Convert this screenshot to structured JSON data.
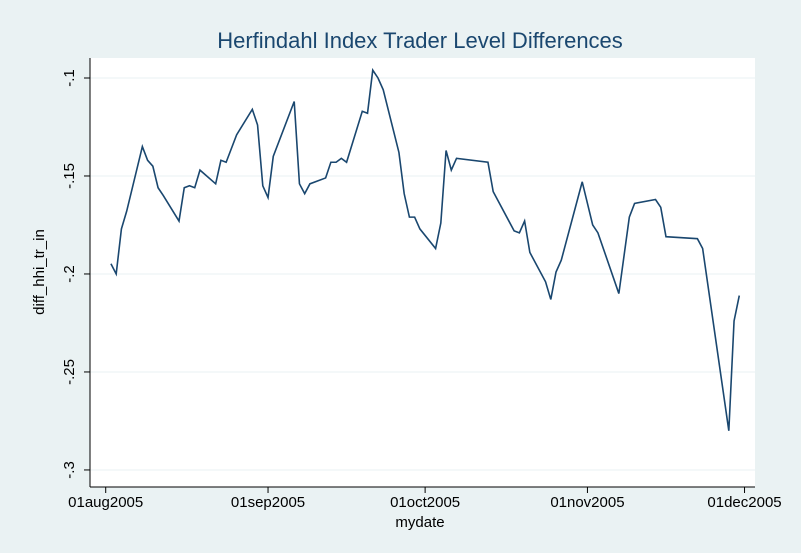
{
  "chart_data": {
    "type": "line",
    "title": "Herfindahl Index Trader Level Differences",
    "x_label": "mydate",
    "y_label": "diff_hhi_tr_in",
    "x": [
      "2005-08-02",
      "2005-08-03",
      "2005-08-04",
      "2005-08-05",
      "2005-08-08",
      "2005-08-09",
      "2005-08-10",
      "2005-08-11",
      "2005-08-12",
      "2005-08-15",
      "2005-08-16",
      "2005-08-17",
      "2005-08-18",
      "2005-08-19",
      "2005-08-22",
      "2005-08-23",
      "2005-08-24",
      "2005-08-26",
      "2005-08-29",
      "2005-08-30",
      "2005-08-31",
      "2005-09-01",
      "2005-09-02",
      "2005-09-06",
      "2005-09-07",
      "2005-09-08",
      "2005-09-09",
      "2005-09-12",
      "2005-09-13",
      "2005-09-14",
      "2005-09-15",
      "2005-09-16",
      "2005-09-19",
      "2005-09-20",
      "2005-09-21",
      "2005-09-22",
      "2005-09-23",
      "2005-09-26",
      "2005-09-27",
      "2005-09-28",
      "2005-09-29",
      "2005-09-30",
      "2005-10-03",
      "2005-10-04",
      "2005-10-05",
      "2005-10-06",
      "2005-10-07",
      "2005-10-13",
      "2005-10-14",
      "2005-10-18",
      "2005-10-19",
      "2005-10-20",
      "2005-10-21",
      "2005-10-24",
      "2005-10-25",
      "2005-10-26",
      "2005-10-27",
      "2005-10-31",
      "2005-11-02",
      "2005-11-03",
      "2005-11-07",
      "2005-11-09",
      "2005-11-10",
      "2005-11-14",
      "2005-11-15",
      "2005-11-16",
      "2005-11-22",
      "2005-11-23",
      "2005-11-28",
      "2005-11-29",
      "2005-11-30"
    ],
    "series": [
      {
        "name": "diff_hhi_tr_in",
        "color": "#1a476f",
        "values": [
          -0.1948,
          -0.2,
          -0.177,
          -0.168,
          -0.135,
          -0.142,
          -0.145,
          -0.156,
          -0.16,
          -0.173,
          -0.156,
          -0.155,
          -0.156,
          -0.147,
          -0.154,
          -0.142,
          -0.143,
          -0.129,
          -0.116,
          -0.124,
          -0.155,
          -0.161,
          -0.14,
          -0.112,
          -0.154,
          -0.159,
          -0.154,
          -0.151,
          -0.143,
          -0.143,
          -0.141,
          -0.143,
          -0.117,
          -0.118,
          -0.096,
          -0.1,
          -0.106,
          -0.138,
          -0.159,
          -0.171,
          -0.171,
          -0.177,
          -0.187,
          -0.174,
          -0.137,
          -0.147,
          -0.141,
          -0.143,
          -0.158,
          -0.178,
          -0.179,
          -0.173,
          -0.189,
          -0.204,
          -0.213,
          -0.199,
          -0.193,
          -0.153,
          -0.175,
          -0.179,
          -0.21,
          -0.171,
          -0.164,
          -0.162,
          -0.166,
          -0.181,
          -0.182,
          -0.187,
          -0.28,
          -0.224,
          -0.211
        ]
      }
    ],
    "xlim": [
      "2005-07-29",
      "2005-12-03"
    ],
    "xticks": [
      {
        "value": "2005-08-01",
        "label": "01aug2005"
      },
      {
        "value": "2005-09-01",
        "label": "01sep2005"
      },
      {
        "value": "2005-10-01",
        "label": "01oct2005"
      },
      {
        "value": "2005-11-01",
        "label": "01nov2005"
      },
      {
        "value": "2005-12-01",
        "label": "01dec2005"
      }
    ],
    "ylim": [
      -0.3087,
      -0.0898
    ],
    "yticks": [
      {
        "value": -0.3,
        "label": "-.3"
      },
      {
        "value": -0.25,
        "label": "-.25"
      },
      {
        "value": -0.2,
        "label": "-.2"
      },
      {
        "value": -0.15,
        "label": "-.15"
      },
      {
        "value": -0.1,
        "label": "-.1"
      }
    ],
    "grid": true
  }
}
